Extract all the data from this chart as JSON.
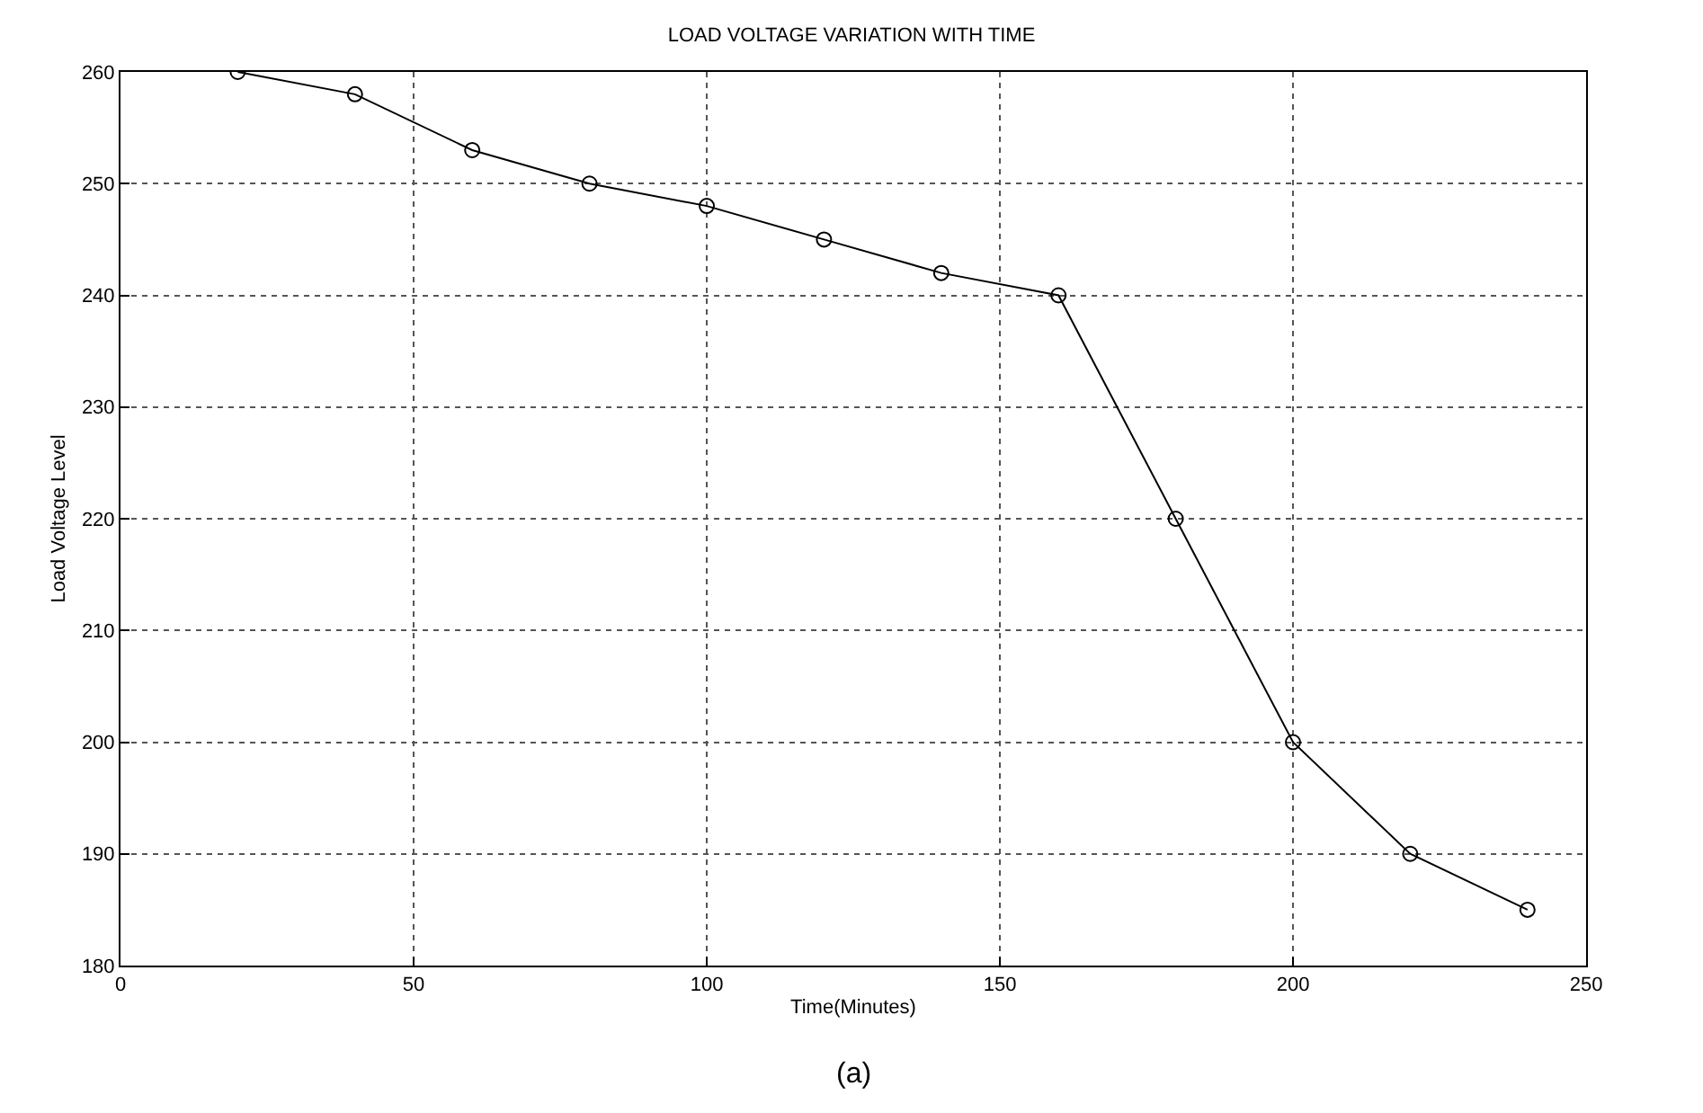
{
  "chart_data": {
    "type": "line",
    "title": "LOAD VOLTAGE VARIATION WITH TIME",
    "xlabel": "Time(Minutes)",
    "ylabel": "Load Voltage Level",
    "x": [
      20,
      40,
      60,
      80,
      100,
      120,
      140,
      160,
      180,
      200,
      220,
      240
    ],
    "series": [
      {
        "color": "#000000",
        "values": [
          260,
          258,
          253,
          250,
          248,
          245,
          242,
          240,
          220,
          200,
          190,
          185
        ]
      }
    ],
    "xlim": [
      0,
      250
    ],
    "xticks": [
      0,
      50,
      100,
      150,
      200,
      250
    ],
    "ylim": [
      180,
      260
    ],
    "yticks": [
      180,
      190,
      200,
      210,
      220,
      230,
      240,
      250,
      260
    ],
    "grid": true,
    "marker": "circle",
    "line_style": "solid",
    "annotations": [
      "(a)"
    ]
  }
}
